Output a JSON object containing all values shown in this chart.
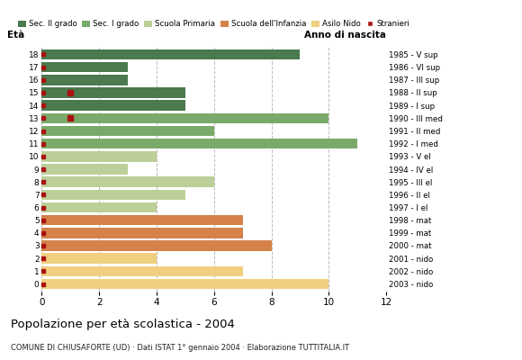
{
  "ages": [
    18,
    17,
    16,
    15,
    14,
    13,
    12,
    11,
    10,
    9,
    8,
    7,
    6,
    5,
    4,
    3,
    2,
    1,
    0
  ],
  "years": [
    "1985 - V sup",
    "1986 - VI sup",
    "1987 - III sup",
    "1988 - II sup",
    "1989 - I sup",
    "1990 - III med",
    "1991 - II med",
    "1992 - I med",
    "1993 - V el",
    "1994 - IV el",
    "1995 - III el",
    "1996 - II el",
    "1997 - I el",
    "1998 - mat",
    "1999 - mat",
    "2000 - mat",
    "2001 - nido",
    "2002 - nido",
    "2003 - nido"
  ],
  "bar_values": [
    9,
    3,
    3,
    5,
    5,
    10,
    6,
    11,
    4,
    3,
    6,
    5,
    4,
    7,
    7,
    8,
    4,
    7,
    10
  ],
  "bar_colors": [
    "#4a7a4e",
    "#4a7a4e",
    "#4a7a4e",
    "#4a7a4e",
    "#4a7a4e",
    "#7aaa6a",
    "#7aaa6a",
    "#7aaa6a",
    "#bccf98",
    "#bccf98",
    "#bccf98",
    "#bccf98",
    "#bccf98",
    "#d4824a",
    "#d4824a",
    "#d4824a",
    "#f0d080",
    "#f0d080",
    "#f0d080"
  ],
  "stranieri_color": "#aa1111",
  "title": "Popolazione per età scolastica - 2004",
  "subtitle": "COMUNE DI CHIUSAFORTE (UD) · Dati ISTAT 1° gennaio 2004 · Elaborazione TUTTITALIA.IT",
  "legend_labels": [
    "Sec. II grado",
    "Sec. I grado",
    "Scuola Primaria",
    "Scuola dell'Infanzia",
    "Asilo Nido",
    "Stranieri"
  ],
  "legend_colors": [
    "#4a7a4e",
    "#7aaa6a",
    "#bccf98",
    "#d4824a",
    "#f0d080",
    "#aa1111"
  ],
  "xlim": [
    0,
    12
  ],
  "xticks": [
    0,
    2,
    4,
    6,
    8,
    10,
    12
  ],
  "grid_color": "#bbbbbb",
  "bg_color": "#ffffff",
  "bar_height": 0.82
}
